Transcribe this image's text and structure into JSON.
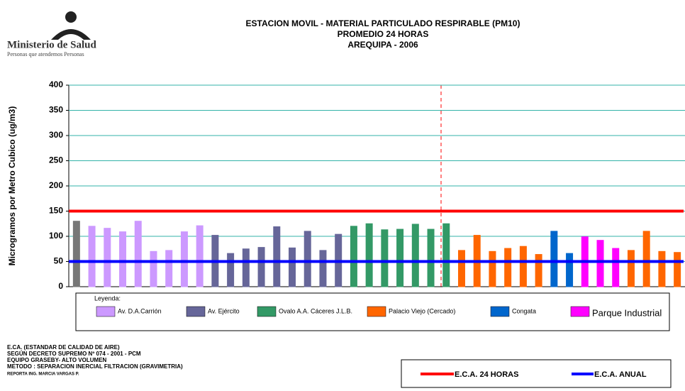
{
  "logo": {
    "name": "Ministerio de Salud",
    "motto": "Personas que atendemos Personas"
  },
  "chart_data": {
    "type": "bar",
    "title": [
      "ESTACION MOVIL - MATERIAL PARTICULADO RESPIRABLE  (PM10)",
      "PROMEDIO 24 HORAS",
      "AREQUIPA - 2006"
    ],
    "y_label": "Microgramos por Metro Cubico (ug/m3)",
    "ylim": [
      0,
      400
    ],
    "yticks": [
      0,
      50,
      100,
      150,
      200,
      250,
      300,
      350,
      400
    ],
    "grid": true,
    "legend_title": "Leyenda:",
    "categories": [
      null,
      null,
      null,
      null,
      null,
      null,
      null,
      null,
      null,
      null,
      null,
      null,
      null,
      null,
      null,
      null,
      null,
      null,
      null,
      null,
      null,
      null,
      null,
      null,
      null,
      null,
      null,
      null,
      null,
      null,
      null,
      null,
      null,
      null,
      null,
      null,
      null,
      null,
      null,
      null
    ],
    "series": [
      {
        "color": "#777777",
        "values": [
          130,
          null,
          null,
          null,
          null,
          null,
          null,
          null,
          null,
          null,
          null,
          null,
          null,
          null,
          null,
          null,
          null,
          null,
          null,
          null,
          null,
          null,
          null,
          null,
          null,
          null,
          null,
          null,
          null,
          null,
          null,
          null,
          null,
          null,
          null,
          null,
          null,
          null,
          null,
          null
        ]
      },
      {
        "name": "Av. D.A.Carrión",
        "color": "#cc99ff",
        "values": [
          null,
          120,
          116,
          109,
          130,
          70,
          72,
          109,
          121,
          null,
          null,
          null,
          null,
          null,
          null,
          null,
          null,
          null,
          null,
          null,
          null,
          null,
          null,
          null,
          null,
          null,
          null,
          null,
          null,
          null,
          null,
          null,
          null,
          null,
          null,
          null,
          null,
          null,
          null,
          null
        ]
      },
      {
        "name": "Av. Ejército",
        "color": "#666699",
        "values": [
          null,
          null,
          null,
          null,
          null,
          null,
          null,
          null,
          null,
          102,
          66,
          75,
          78,
          119,
          77,
          110,
          72,
          104,
          null,
          null,
          null,
          null,
          null,
          null,
          null,
          null,
          null,
          null,
          null,
          null,
          null,
          null,
          null,
          null,
          null,
          null,
          null,
          null,
          null,
          null
        ]
      },
      {
        "name": "Ovalo A.A. Cáceres J.L.B.",
        "color": "#339966",
        "values": [
          null,
          null,
          null,
          null,
          null,
          null,
          null,
          null,
          null,
          null,
          null,
          null,
          null,
          null,
          null,
          null,
          null,
          null,
          120,
          125,
          113,
          114,
          124,
          114,
          125,
          null,
          null,
          null,
          null,
          null,
          null,
          null,
          null,
          null,
          null,
          null,
          null,
          null,
          null,
          null
        ]
      },
      {
        "name": "Palacio Viejo (Cercado)",
        "color": "#ff6600",
        "values": [
          null,
          null,
          null,
          null,
          null,
          null,
          null,
          null,
          null,
          null,
          null,
          null,
          null,
          null,
          null,
          null,
          null,
          null,
          null,
          null,
          null,
          null,
          null,
          null,
          null,
          72,
          102,
          70,
          76,
          80,
          64,
          null,
          null,
          null,
          null,
          null,
          72,
          110,
          70,
          68
        ]
      },
      {
        "name": "Congata",
        "color": "#0066cc",
        "values": [
          null,
          null,
          null,
          null,
          null,
          null,
          null,
          null,
          null,
          null,
          null,
          null,
          null,
          null,
          null,
          null,
          null,
          null,
          null,
          null,
          null,
          null,
          null,
          null,
          null,
          null,
          null,
          null,
          null,
          null,
          null,
          110,
          66,
          null,
          null,
          null,
          null,
          null,
          null,
          null
        ]
      },
      {
        "name": "Parque Industrial",
        "color": "#ff00ff",
        "values": [
          null,
          null,
          null,
          null,
          null,
          null,
          null,
          null,
          null,
          null,
          null,
          null,
          null,
          null,
          null,
          null,
          null,
          null,
          null,
          null,
          null,
          null,
          null,
          null,
          null,
          null,
          null,
          null,
          null,
          null,
          null,
          null,
          null,
          99,
          92,
          76,
          null,
          null,
          null,
          null
        ]
      }
    ],
    "reference_lines": [
      {
        "name": "E.C.A. 24 HORAS",
        "value": 150,
        "color": "#ff0000"
      },
      {
        "name": "E.C.A. ANUAL",
        "value": 50,
        "color": "#0000ff"
      }
    ],
    "notes": [
      "E.CA. (ESTANDAR DE CALIDAD DE AIRE)",
      "SEGÚN DECRETO SUPREMO Nº 074 - 2001 - PCM",
      "EQUIPO GRASEBY- ALTO VOLUMEN",
      "METODO : SEPARACION INERCIAL FILTRACION (GRAVIMETRIA)",
      "REPORTA ING. MARCIA VARGAS P."
    ]
  }
}
